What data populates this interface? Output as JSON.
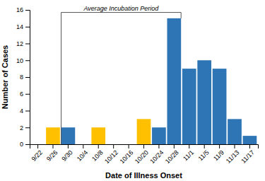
{
  "chart_data": {
    "type": "bar",
    "categories": [
      "9/22",
      "9/26",
      "9/30",
      "10/4",
      "10/8",
      "10/12",
      "10/16",
      "10/20",
      "10/24",
      "10/28",
      "11/1",
      "11/5",
      "11/9",
      "11/13",
      "11/17"
    ],
    "values": [
      0,
      2,
      2,
      0,
      2,
      0,
      0,
      3,
      2,
      15,
      9,
      10,
      9,
      3,
      1
    ],
    "colors": [
      "#2E75B6",
      "#FFC000",
      "#2E75B6",
      "#2E75B6",
      "#FFC000",
      "#2E75B6",
      "#2E75B6",
      "#FFC000",
      "#2E75B6",
      "#2E75B6",
      "#2E75B6",
      "#2E75B6",
      "#2E75B6",
      "#2E75B6",
      "#2E75B6"
    ],
    "x_label": "Date of Illness Onset",
    "y_label": "Number of Cases",
    "ylim": [
      0,
      16
    ],
    "yticks": [
      0,
      2,
      4,
      6,
      8,
      10,
      12,
      14,
      16
    ],
    "grid": false,
    "annotations": [
      {
        "text": "Average Incubation Period",
        "x_start": "9/30",
        "x_end": "10/28",
        "y": 15.7
      }
    ]
  }
}
